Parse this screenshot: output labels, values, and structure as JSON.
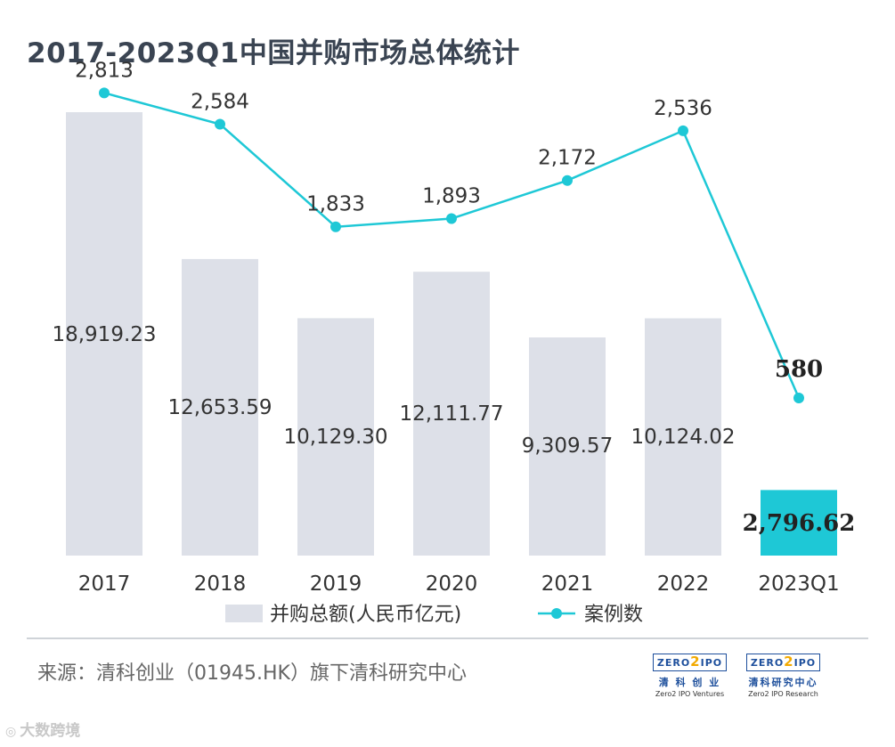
{
  "chart_data": {
    "type": "bar",
    "title": "2017-2023Q1中国并购市场总体统计",
    "categories": [
      "2017",
      "2018",
      "2019",
      "2020",
      "2021",
      "2022",
      "2023Q1"
    ],
    "series": [
      {
        "name": "并购总额(人民币亿元)",
        "kind": "bar",
        "values": [
          18919.23,
          12653.59,
          10129.3,
          12111.77,
          9309.57,
          10124.02,
          2796.62
        ],
        "labels": [
          "18,919.23",
          "12,653.59",
          "10,129.30",
          "12,111.77",
          "9,309.57",
          "10,124.02",
          "2,796.62"
        ],
        "color": "#dde0e8",
        "highlight_color": "#1ec8d6",
        "highlight_index": 6
      },
      {
        "name": "案例数",
        "kind": "line",
        "values": [
          2813,
          2584,
          1833,
          1893,
          2172,
          2536,
          580
        ],
        "labels": [
          "2,813",
          "2,584",
          "1,833",
          "1,893",
          "2,172",
          "2,536",
          "580"
        ],
        "color": "#1ec8d6"
      }
    ],
    "bar_ylim": [
      0,
      20000
    ],
    "line_ylim": [
      0,
      2900
    ]
  },
  "footer": {
    "source": "来源：清科创业（01945.HK）旗下清科研究中心"
  },
  "logos": [
    {
      "brand_a": "ZERO",
      "brand_two": "2",
      "brand_b": "IPO",
      "cn": "清 科 创 业",
      "en": "Zero2 IPO Ventures"
    },
    {
      "brand_a": "ZERO",
      "brand_two": "2",
      "brand_b": "IPO",
      "cn": "清科研究中心",
      "en": "Zero2 IPO Research"
    }
  ],
  "watermark": "大数跨境",
  "colors": {
    "title": "#3a4452",
    "accent": "#1ec8d6",
    "bar": "#dde0e8"
  }
}
